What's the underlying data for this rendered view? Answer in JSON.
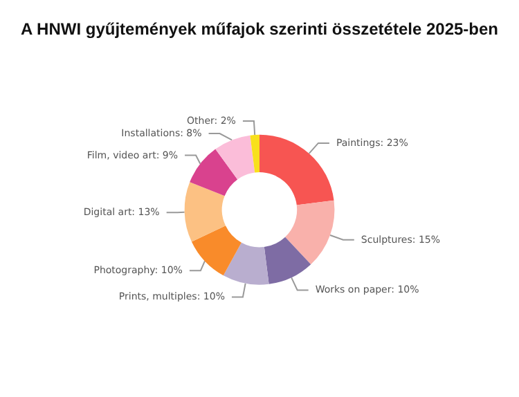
{
  "chart_data": {
    "type": "donut",
    "title": "A HNWI gyűjtemények műfajok szerinti összetétele 2025-ben",
    "categories": [
      "Paintings",
      "Sculptures",
      "Works on paper",
      "Prints, multiples",
      "Photography",
      "Digital art",
      "Film, video art",
      "Installations",
      "Other"
    ],
    "values": [
      23,
      15,
      10,
      10,
      10,
      13,
      9,
      8,
      2
    ],
    "value_labels": [
      "23%",
      "15%",
      "10%",
      "10%",
      "10%",
      "13%",
      "9%",
      "8%",
      "2%"
    ],
    "colors": [
      "#f75552",
      "#f9b1ab",
      "#7e6ca4",
      "#b9aecf",
      "#f98b2a",
      "#fcc183",
      "#d9428e",
      "#fbbdd9",
      "#f8e01c"
    ],
    "legend": false
  }
}
